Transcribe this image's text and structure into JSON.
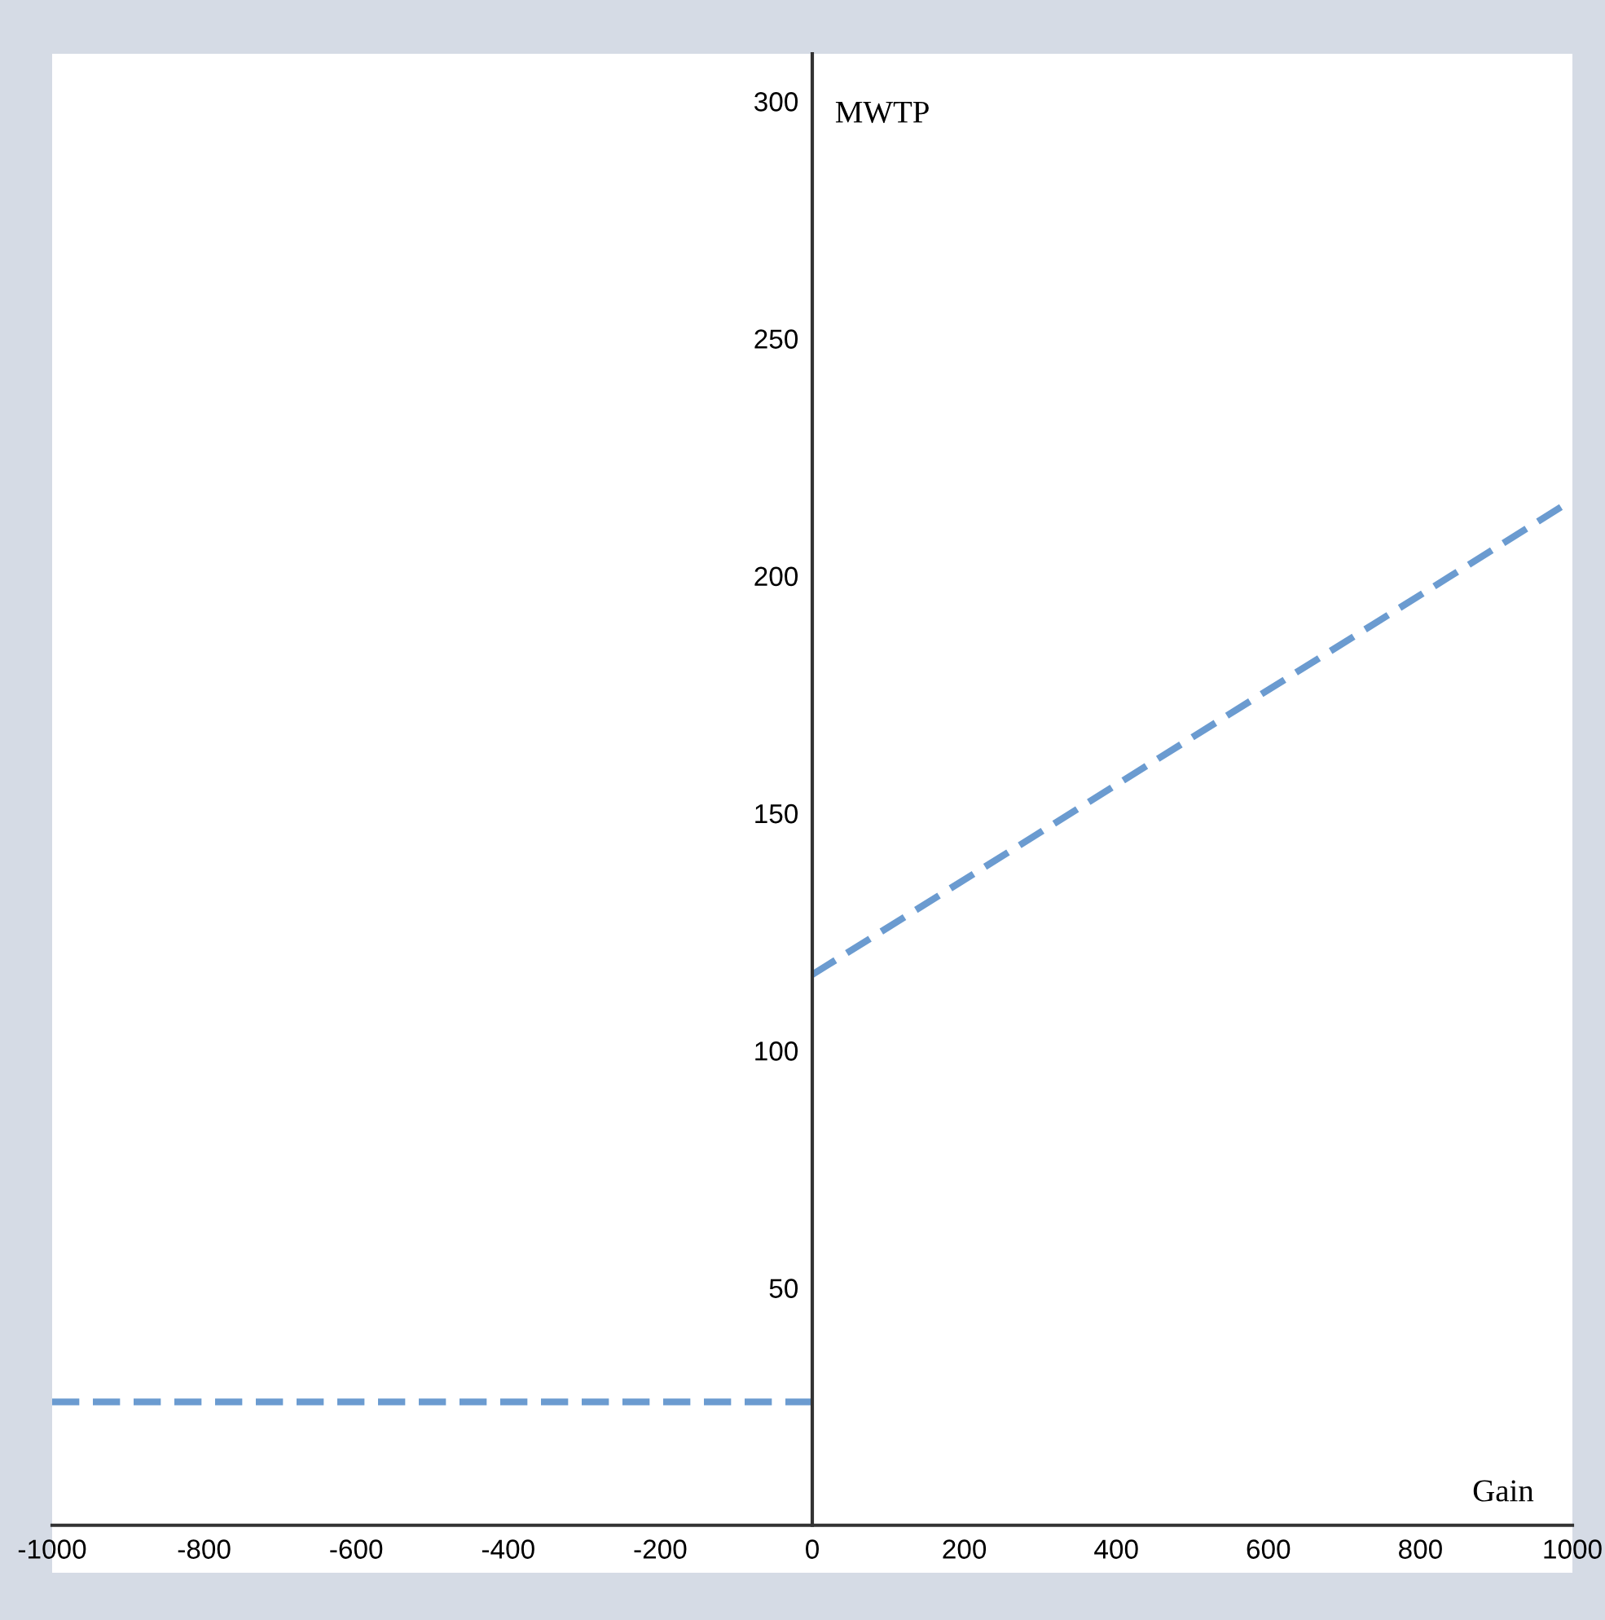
{
  "chart_data": {
    "type": "line",
    "xlabel": "Gain",
    "ylabel": "MWTP",
    "series": [
      {
        "color": "#6b9bd0",
        "x": [
          -1000,
          0
        ],
        "values": [
          26,
          26
        ]
      },
      {
        "color": "#6b9bd0",
        "x": [
          0,
          1000
        ],
        "values": [
          116,
          216
        ]
      }
    ],
    "xlim": [
      -1000,
      1000
    ],
    "ylim": [
      -10,
      310
    ],
    "xticks": [
      -1000,
      -800,
      -600,
      -400,
      -200,
      0,
      200,
      400,
      600,
      800,
      1000
    ],
    "yticks": [
      50,
      100,
      150,
      200,
      250,
      300
    ],
    "line_style": "dashed",
    "grid": false,
    "legend": false
  }
}
